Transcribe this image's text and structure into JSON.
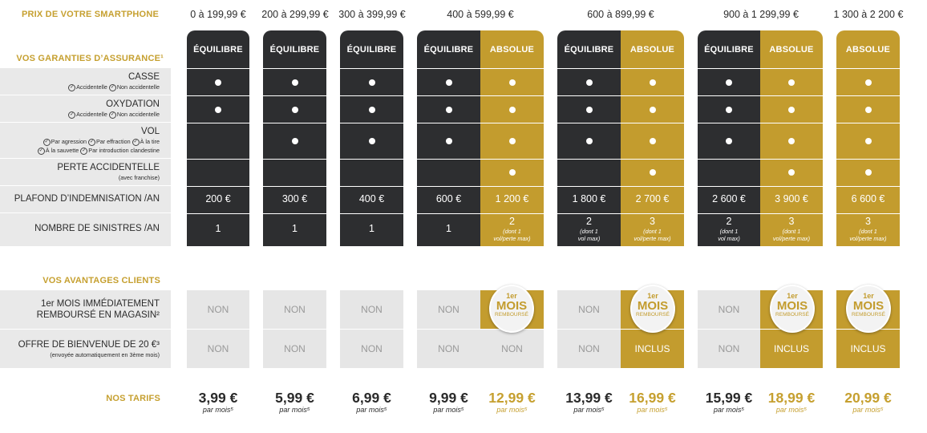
{
  "header": {
    "price_label": "PRIX DE VOTRE SMARTPHONE",
    "ranges": [
      "0 à 199,99 €",
      "200 à 299,99 €",
      "300 à 399,99 €",
      "400 à 599,99 €",
      "600 à 899,99 €",
      "900 à 1 299,99 €",
      "1 300 à 2 200 €"
    ]
  },
  "guarantees": {
    "title": "VOS GARANTIES D’ASSURANCE¹",
    "casse": {
      "label": "CASSE",
      "sub": [
        "Accidentelle",
        "Non accidentelle"
      ]
    },
    "oxydation": {
      "label": "OXYDATION",
      "sub": [
        "Accidentelle",
        "Non accidentelle"
      ]
    },
    "vol": {
      "label": "VOL",
      "sub1": [
        "Par agression",
        "Par effraction",
        "À la tire"
      ],
      "sub2": [
        "À la sauvette",
        "Par introduction clandestine"
      ]
    },
    "perte": {
      "label": "PERTE ACCIDENTELLE",
      "sub": "(avec franchise)"
    },
    "plafond": {
      "label": "PLAFOND D’INDEMNISATION /AN"
    },
    "sinistres": {
      "label": "NOMBRE DE SINISTRES /AN"
    }
  },
  "formulas": {
    "equilibre": "ÉQUILIBRE",
    "absolue": "ABSOLUE"
  },
  "columns": {
    "c1": {
      "plafond": "200 €",
      "sinistres": "1"
    },
    "c2": {
      "plafond": "300 €",
      "sinistres": "1"
    },
    "c3": {
      "plafond": "400 €",
      "sinistres": "1"
    },
    "c4e": {
      "plafond": "600 €",
      "sinistres": "1"
    },
    "c4a": {
      "plafond": "1 200 €",
      "sinistres": "2",
      "note": "(dont 1",
      "note2": "vol/perte max)"
    },
    "c5e": {
      "plafond": "1 800 €",
      "sinistres": "2",
      "note": "(dont 1",
      "note2": "vol max)"
    },
    "c5a": {
      "plafond": "2 700 €",
      "sinistres": "3",
      "note": "(dont 1",
      "note2": "vol/perte max)"
    },
    "c6e": {
      "plafond": "2 600 €",
      "sinistres": "2",
      "note": "(dont 1",
      "note2": "vol max)"
    },
    "c6a": {
      "plafond": "3 900 €",
      "sinistres": "3",
      "note": "(dont 1",
      "note2": "vol/perte max)"
    },
    "c7a": {
      "plafond": "6 600 €",
      "sinistres": "3",
      "note": "(dont 1",
      "note2": "vol/perte max)"
    }
  },
  "advantages": {
    "title": "VOS AVANTAGES CLIENTS",
    "mois_label1": "1er MOIS IMMÉDIATEMENT",
    "mois_label2": "REMBOURSÉ EN MAGASIN²",
    "bienvenue_label": "OFFRE DE BIENVENUE DE 20 €³",
    "bienvenue_sub": "(envoyée automatiquement en 3ème mois)",
    "non": "NON",
    "inclus": "INCLUS",
    "badge": {
      "top": "1er",
      "mid": "MOIS",
      "bottom": "REMBOURSÉ"
    }
  },
  "tarifs": {
    "title": "NOS TARIFS",
    "per": "par mois⁵",
    "prices": [
      "3,99 €",
      "5,99 €",
      "6,99 €",
      "9,99 €",
      "12,99 €",
      "13,99 €",
      "16,99 €",
      "15,99 €",
      "18,99 €",
      "20,99 €"
    ]
  },
  "colors": {
    "dark": "#2d2e30",
    "gold": "#c39c2e",
    "grey": "#e6e6e6"
  }
}
